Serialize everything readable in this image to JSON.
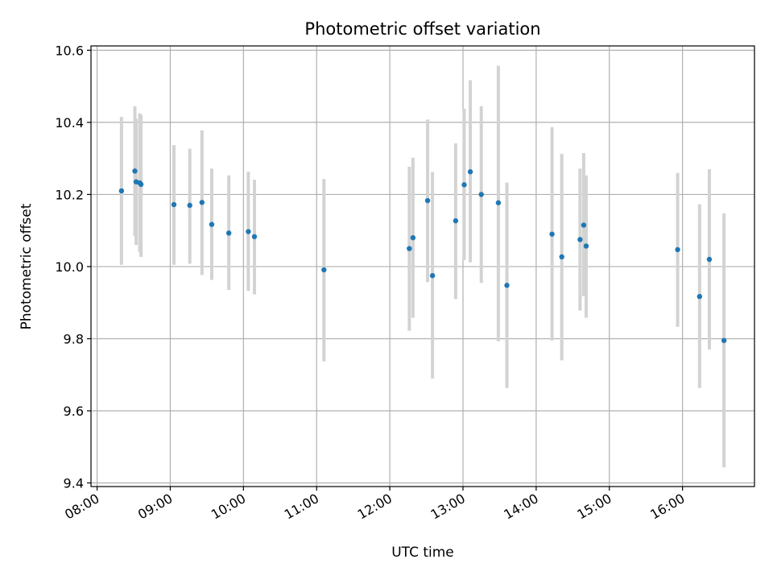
{
  "chart_data": {
    "type": "scatter",
    "title": "Photometric offset variation",
    "xlabel": "UTC time",
    "ylabel": "Photometric offset",
    "x_ticks": [
      "08:00",
      "09:00",
      "10:00",
      "11:00",
      "12:00",
      "13:00",
      "14:00",
      "15:00",
      "16:00"
    ],
    "y_ticks": [
      "9.4",
      "9.6",
      "9.8",
      "10.0",
      "10.2",
      "10.4",
      "10.6"
    ],
    "xlim": [
      "07:55",
      "16:59"
    ],
    "ylim": [
      9.39,
      10.612
    ],
    "grid": true,
    "colors": {
      "points": "#1f77b4",
      "errorbars": "#d3d3d3",
      "grid": "#b0b0b0"
    },
    "points": [
      {
        "x": "08:20",
        "y": 10.21,
        "lo": 10.005,
        "hi": 10.415
      },
      {
        "x": "08:31",
        "y": 10.265,
        "lo": 10.085,
        "hi": 10.445
      },
      {
        "x": "08:32",
        "y": 10.235,
        "lo": 10.06,
        "hi": 10.41
      },
      {
        "x": "08:35",
        "y": 10.232,
        "lo": 10.04,
        "hi": 10.425
      },
      {
        "x": "08:36",
        "y": 10.228,
        "lo": 10.027,
        "hi": 10.42
      },
      {
        "x": "09:03",
        "y": 10.172,
        "lo": 10.005,
        "hi": 10.337
      },
      {
        "x": "09:16",
        "y": 10.17,
        "lo": 10.008,
        "hi": 10.327
      },
      {
        "x": "09:26",
        "y": 10.178,
        "lo": 9.977,
        "hi": 10.378
      },
      {
        "x": "09:34",
        "y": 10.117,
        "lo": 9.963,
        "hi": 10.272
      },
      {
        "x": "09:48",
        "y": 10.093,
        "lo": 9.935,
        "hi": 10.253
      },
      {
        "x": "10:04",
        "y": 10.097,
        "lo": 9.933,
        "hi": 10.263
      },
      {
        "x": "10:09",
        "y": 10.083,
        "lo": 9.923,
        "hi": 10.241
      },
      {
        "x": "11:06",
        "y": 9.991,
        "lo": 9.737,
        "hi": 10.243
      },
      {
        "x": "12:16",
        "y": 10.05,
        "lo": 9.822,
        "hi": 10.277
      },
      {
        "x": "12:19",
        "y": 10.08,
        "lo": 9.858,
        "hi": 10.302
      },
      {
        "x": "12:31",
        "y": 10.183,
        "lo": 9.957,
        "hi": 10.408
      },
      {
        "x": "12:35",
        "y": 9.975,
        "lo": 9.69,
        "hi": 10.262
      },
      {
        "x": "12:54",
        "y": 10.127,
        "lo": 9.91,
        "hi": 10.342
      },
      {
        "x": "13:01",
        "y": 10.227,
        "lo": 10.018,
        "hi": 10.438
      },
      {
        "x": "13:06",
        "y": 10.263,
        "lo": 10.012,
        "hi": 10.517
      },
      {
        "x": "13:15",
        "y": 10.2,
        "lo": 9.955,
        "hi": 10.445
      },
      {
        "x": "13:29",
        "y": 10.177,
        "lo": 9.793,
        "hi": 10.557
      },
      {
        "x": "13:36",
        "y": 9.948,
        "lo": 9.663,
        "hi": 10.233
      },
      {
        "x": "14:13",
        "y": 10.09,
        "lo": 9.795,
        "hi": 10.387
      },
      {
        "x": "14:21",
        "y": 10.027,
        "lo": 9.74,
        "hi": 10.313
      },
      {
        "x": "14:36",
        "y": 10.075,
        "lo": 9.878,
        "hi": 10.272
      },
      {
        "x": "14:39",
        "y": 10.115,
        "lo": 9.918,
        "hi": 10.315
      },
      {
        "x": "14:41",
        "y": 10.057,
        "lo": 9.858,
        "hi": 10.253
      },
      {
        "x": "15:56",
        "y": 10.047,
        "lo": 9.833,
        "hi": 10.26
      },
      {
        "x": "16:14",
        "y": 9.917,
        "lo": 9.663,
        "hi": 10.173
      },
      {
        "x": "16:22",
        "y": 10.02,
        "lo": 9.77,
        "hi": 10.27
      },
      {
        "x": "16:34",
        "y": 9.795,
        "lo": 9.443,
        "hi": 10.148
      }
    ]
  }
}
